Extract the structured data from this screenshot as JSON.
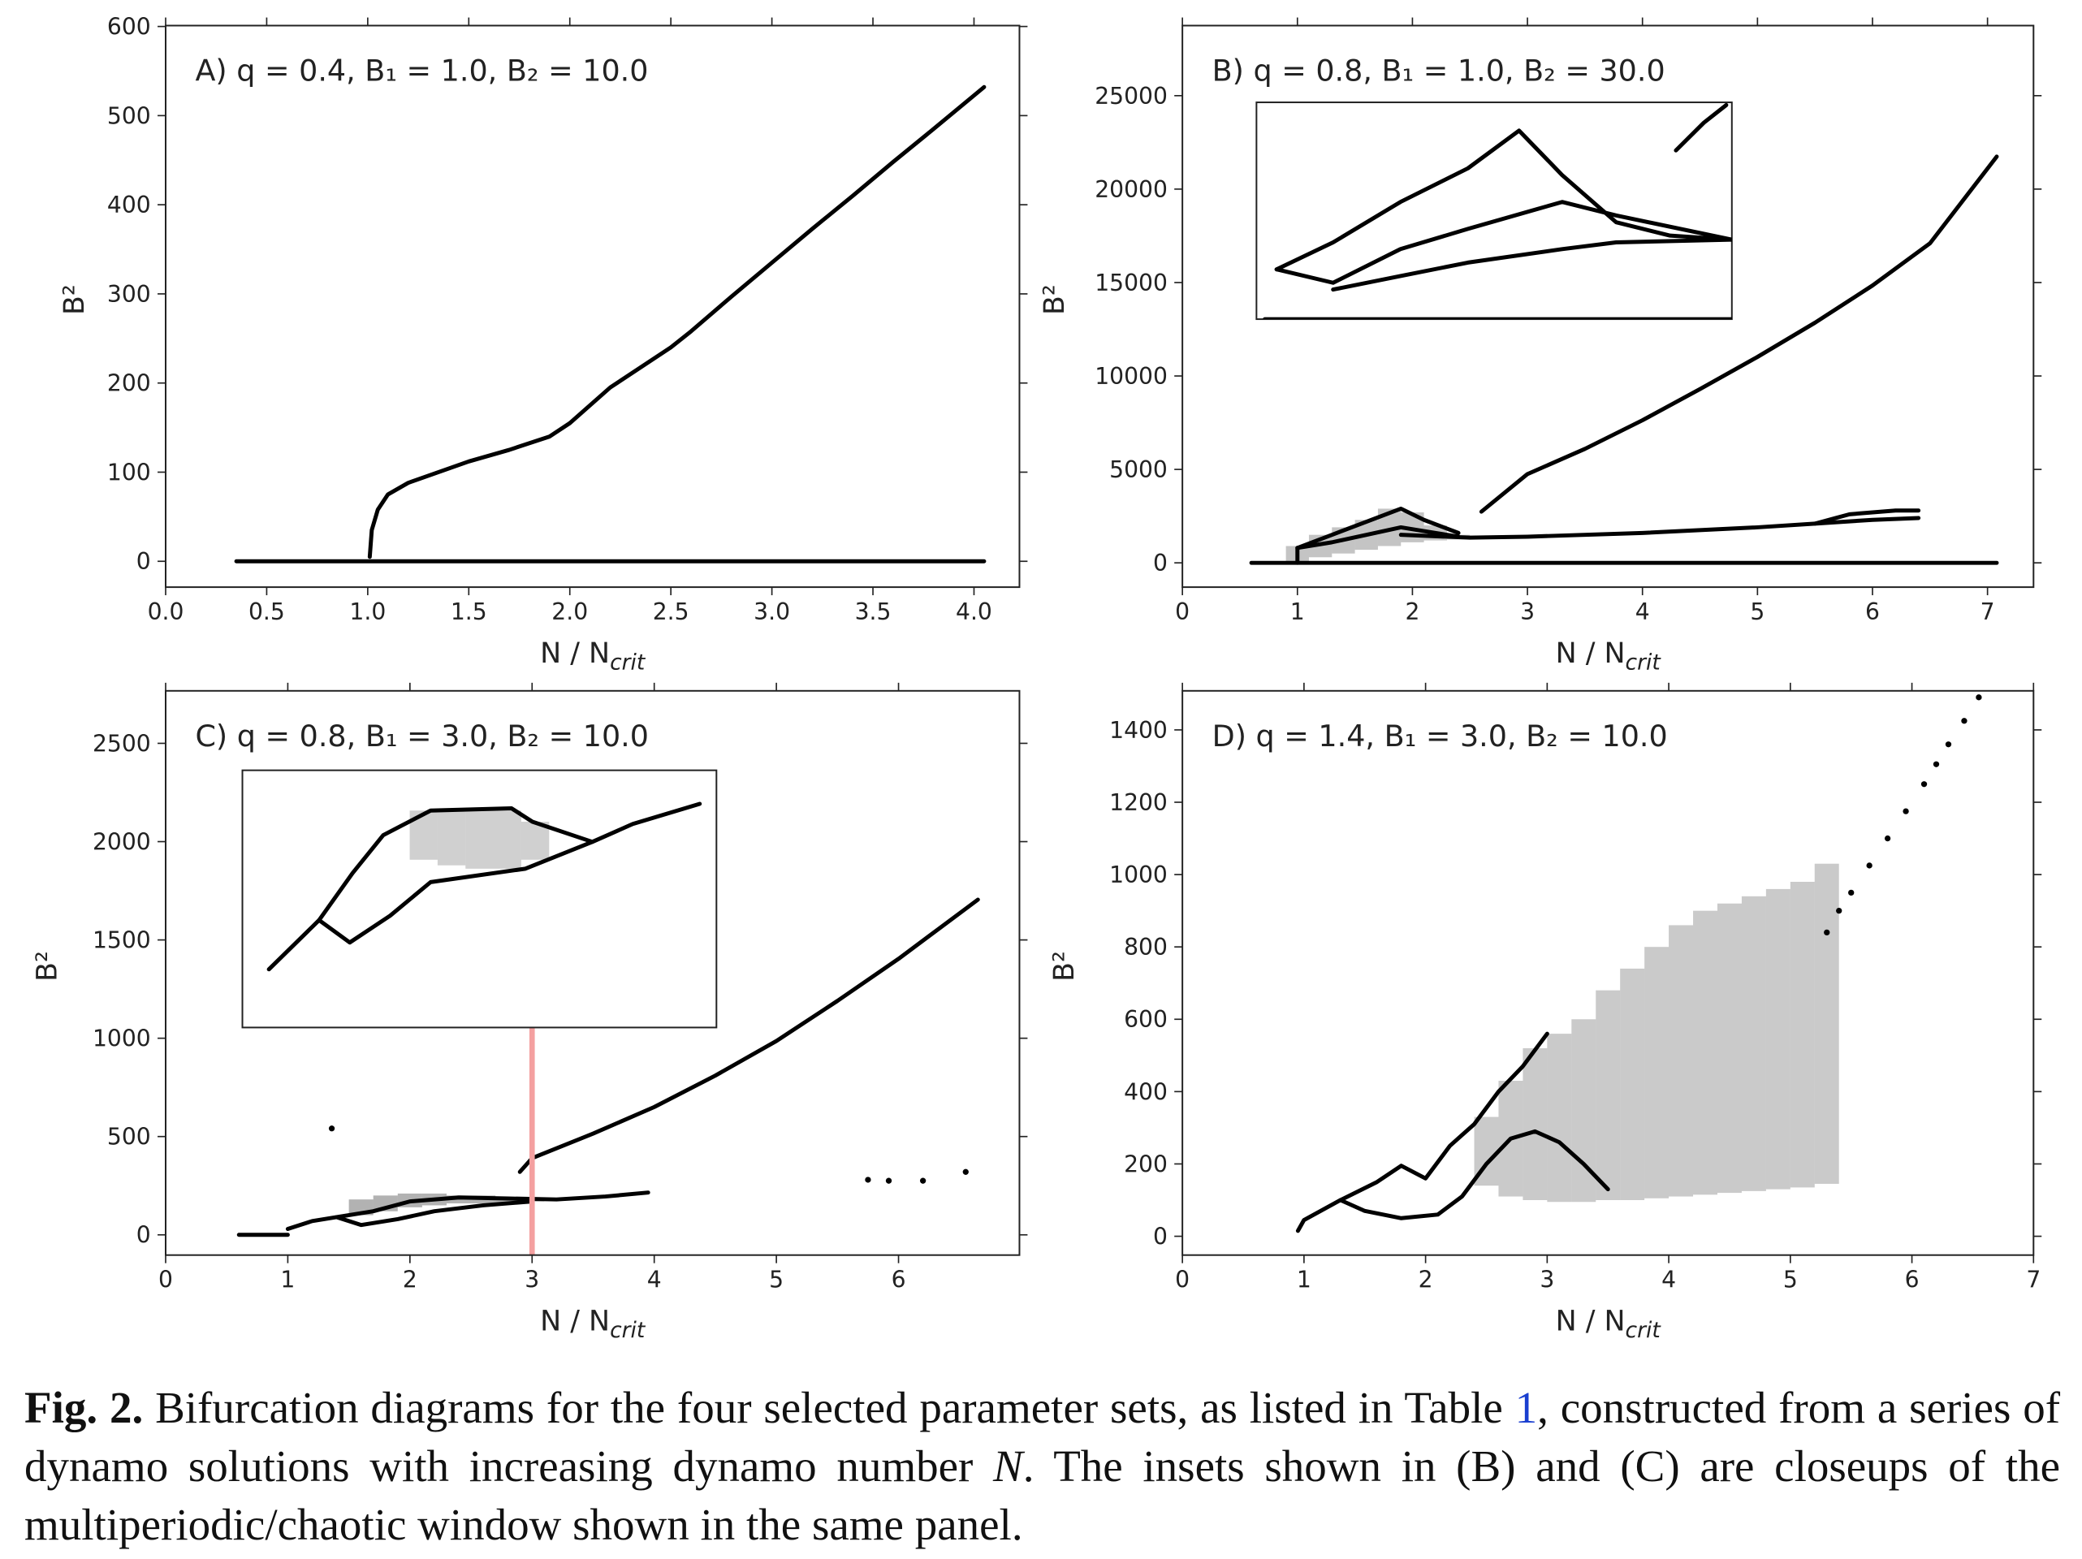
{
  "chart_data": [
    {
      "type": "scatter",
      "annotation": "A) q = 0.4, B₁ = 1.0, B₂ = 10.0",
      "xlabel": "N / N",
      "xlabel_sub": "crit",
      "ylabel": "B²",
      "xlim": [
        0,
        4.225
      ],
      "ylim": [
        -29,
        601
      ],
      "xticks": [
        {
          "value": 0,
          "label": "0.0"
        },
        0.5,
        {
          "value": 1,
          "label": "1.0"
        },
        1.5,
        {
          "value": 2,
          "label": "2.0"
        },
        2.5,
        {
          "value": 3,
          "label": "3.0"
        },
        3.5,
        {
          "value": 4,
          "label": "4.0"
        }
      ],
      "yticks": [
        0,
        100,
        200,
        300,
        400,
        500,
        600
      ],
      "series": [
        {
          "style": "line",
          "color": "#000000",
          "x": [
            0.35,
            4.05
          ],
          "values": [
            0,
            0
          ]
        },
        {
          "style": "line",
          "color": "#000000",
          "x": [
            1.01,
            1.02,
            1.05,
            1.1,
            1.2,
            1.5,
            1.7,
            1.9,
            2.0,
            2.2,
            2.5,
            2.6,
            2.8,
            3.0,
            3.2,
            3.4,
            3.6,
            3.8,
            4.05
          ],
          "values": [
            5,
            35,
            58,
            75,
            88,
            112,
            125,
            140,
            155,
            195,
            240,
            258,
            297,
            335,
            373,
            410,
            448,
            485,
            532
          ]
        }
      ]
    },
    {
      "type": "scatter",
      "annotation": "B) q = 0.8, B₁ = 1.0, B₂ = 30.0",
      "xlabel": "N / N",
      "xlabel_sub": "crit",
      "ylabel": "B²",
      "xlim": [
        0,
        7.4
      ],
      "ylim": [
        -1300,
        28750
      ],
      "xticks": [
        0,
        1,
        2,
        3,
        4,
        5,
        6,
        7
      ],
      "yticks": [
        0,
        5000,
        10000,
        15000,
        20000,
        25000
      ],
      "series": [
        {
          "style": "band",
          "color": "#555555",
          "x": [
            1.0,
            1.2,
            1.4,
            1.6,
            1.8,
            2.0,
            2.2,
            2.4
          ],
          "low": [
            0,
            300,
            500,
            700,
            900,
            1100,
            1200,
            1250
          ],
          "high": [
            900,
            1500,
            1900,
            2300,
            2900,
            2700,
            2000,
            1500
          ]
        },
        {
          "style": "line",
          "color": "#000000",
          "x": [
            0.6,
            7.08
          ],
          "values": [
            0,
            0
          ]
        },
        {
          "style": "line",
          "color": "#000000",
          "x": [
            1.0,
            1.0
          ],
          "values": [
            0,
            800
          ]
        },
        {
          "style": "line",
          "color": "#000000",
          "x": [
            1.0,
            1.3,
            1.6,
            1.9,
            2.1,
            2.4
          ],
          "values": [
            800,
            1500,
            2200,
            2900,
            2300,
            1600
          ]
        },
        {
          "style": "line",
          "color": "#000000",
          "x": [
            1.0,
            1.3,
            1.6,
            1.9,
            2.1,
            2.4
          ],
          "values": [
            800,
            1100,
            1500,
            1900,
            1700,
            1400
          ]
        },
        {
          "style": "line",
          "color": "#000000",
          "x": [
            1.9,
            2.5,
            3.0,
            4.0,
            5.0,
            5.5,
            6.0,
            6.4
          ],
          "values": [
            1500,
            1350,
            1400,
            1600,
            1900,
            2100,
            2300,
            2400
          ]
        },
        {
          "style": "line",
          "color": "#000000",
          "x": [
            5.5,
            5.8,
            6.2,
            6.4
          ],
          "values": [
            2100,
            2600,
            2800,
            2800
          ]
        },
        {
          "style": "line",
          "color": "#000000",
          "x": [
            2.6,
            3.0,
            3.5,
            4.0,
            4.5,
            5.0,
            5.5,
            6.0,
            6.5,
            7.08
          ],
          "values": [
            2740,
            4750,
            6100,
            7630,
            9300,
            11020,
            12850,
            14840,
            17100,
            21740
          ]
        }
      ],
      "inset": {
        "xlim": [
          0.9,
          2.6
        ],
        "ylim": [
          0,
          3200
        ],
        "series": [
          {
            "style": "line",
            "color": "#000000",
            "x": [
              0.93,
              2.6
            ],
            "values": [
              0,
              0
            ]
          },
          {
            "style": "line",
            "color": "#000000",
            "x": [
              0.972,
              1.174,
              1.415,
              1.656,
              1.839,
              1.993,
              2.186,
              2.379,
              2.6
            ],
            "values": [
              735,
              1133,
              1730,
              2226,
              2783,
              2127,
              1431,
              1233,
              1173
            ]
          },
          {
            "style": "line",
            "color": "#000000",
            "x": [
              0.972,
              1.174,
              1.415,
              1.656,
              1.993,
              2.186,
              2.6
            ],
            "values": [
              735,
              537,
              1034,
              1332,
              1730,
              1531,
              1173
            ]
          },
          {
            "style": "line",
            "color": "#000000",
            "x": [
              1.174,
              1.415,
              1.656,
              1.993,
              2.186,
              2.6
            ],
            "values": [
              437,
              636,
              835,
              1034,
              1133,
              1173
            ]
          },
          {
            "style": "line",
            "color": "#000000",
            "x": [
              2.4,
              2.5,
              2.58
            ],
            "values": [
              2490,
              2900,
              3160
            ]
          }
        ]
      }
    },
    {
      "type": "scatter",
      "annotation": "C) q = 0.8, B₁ = 3.0, B₂ = 10.0",
      "xlabel": "N / N",
      "xlabel_sub": "crit",
      "ylabel": "B²",
      "xlim": [
        0,
        6.99
      ],
      "ylim": [
        -103,
        2767
      ],
      "xticks": [
        0,
        1,
        2,
        3,
        4,
        5,
        6
      ],
      "yticks": [
        0,
        500,
        1000,
        1500,
        2000,
        2500
      ],
      "marker_x": 3,
      "marker_color": "#f4a0a0",
      "series": [
        {
          "style": "band",
          "color": "#222222",
          "x": [
            1.6,
            1.8,
            2.0,
            2.2,
            2.4,
            2.6,
            2.8,
            3.0
          ],
          "low": [
            100,
            120,
            140,
            150,
            160,
            160,
            160,
            170
          ],
          "high": [
            180,
            200,
            210,
            210,
            200,
            200,
            190,
            190
          ]
        },
        {
          "style": "line",
          "color": "#000000",
          "x": [
            0.6,
            1.0
          ],
          "values": [
            0,
            0
          ]
        },
        {
          "style": "line",
          "color": "#000000",
          "x": [
            1.0,
            1.2,
            1.4,
            1.7,
            2.0,
            2.4,
            2.8,
            3.2,
            3.6,
            3.95
          ],
          "values": [
            30,
            70,
            90,
            120,
            170,
            190,
            185,
            180,
            195,
            215
          ]
        },
        {
          "style": "line",
          "color": "#000000",
          "x": [
            1.4,
            1.6,
            1.9,
            2.2,
            2.6,
            3.0
          ],
          "values": [
            90,
            50,
            80,
            120,
            150,
            170
          ]
        },
        {
          "style": "line",
          "color": "#000000",
          "x": [
            2.9,
            3.0,
            3.5,
            4.0,
            4.5,
            5.0,
            5.5,
            6.0,
            6.65
          ],
          "values": [
            320,
            390,
            515,
            650,
            810,
            986,
            1190,
            1404,
            1705
          ]
        },
        {
          "style": "dots",
          "color": "#000000",
          "x": [
            1.36,
            5.75,
            5.92,
            6.2,
            6.55
          ],
          "values": [
            541,
            280,
            275,
            275,
            320
          ]
        }
      ],
      "inset": {
        "xlim": [
          0.6,
          4.0
        ],
        "ylim": [
          0,
          230
        ],
        "series": [
          {
            "style": "band",
            "color": "#777777",
            "x": [
              1.9,
              2.1,
              2.3,
              2.5,
              2.7
            ],
            "low": [
              150,
              145,
              142,
              142,
              150
            ],
            "high": [
              194,
              196,
              196,
              194,
              184
            ]
          },
          {
            "style": "line",
            "color": "#000000",
            "x": [
              0.79,
              1.15,
              1.39,
              1.61,
              1.95,
              2.53,
              2.68,
              3.11,
              3.4,
              3.88
            ],
            "values": [
              52,
              96,
              138,
              172,
              194,
              196,
              184,
              166,
              182,
              200
            ]
          },
          {
            "style": "line",
            "color": "#000000",
            "x": [
              1.15,
              1.37,
              1.66,
              1.95,
              2.63,
              3.11
            ],
            "values": [
              96,
              76,
              100,
              130,
              142,
              166
            ]
          }
        ]
      }
    },
    {
      "type": "scatter",
      "annotation": "D) q = 1.4, B₁ = 3.0, B₂ = 10.0",
      "xlabel": "N / N",
      "xlabel_sub": "crit",
      "ylabel": "B²",
      "xlim": [
        0,
        7
      ],
      "ylim": [
        -52,
        1508
      ],
      "xticks": [
        0,
        1,
        2,
        3,
        4,
        5,
        6,
        7
      ],
      "yticks": [
        0,
        200,
        400,
        600,
        800,
        1000,
        1200,
        1400
      ],
      "series": [
        {
          "style": "band",
          "color": "#666666",
          "x": [
            2.5,
            2.7,
            2.9,
            3.1,
            3.3,
            3.5,
            3.7,
            3.9,
            4.1,
            4.3,
            4.5,
            4.7,
            4.9,
            5.1,
            5.3
          ],
          "low": [
            140,
            110,
            100,
            95,
            95,
            100,
            100,
            105,
            110,
            115,
            120,
            125,
            130,
            135,
            145
          ],
          "high": [
            330,
            430,
            520,
            560,
            600,
            680,
            740,
            800,
            860,
            900,
            920,
            940,
            960,
            980,
            1030
          ]
        },
        {
          "style": "line",
          "color": "#000000",
          "x": [
            0.95,
            1.0,
            1.3,
            1.6,
            1.8,
            2.0,
            2.2,
            2.4,
            2.6,
            2.8,
            3.0
          ],
          "values": [
            15,
            45,
            100,
            150,
            195,
            160,
            250,
            310,
            400,
            470,
            560
          ]
        },
        {
          "style": "line",
          "color": "#000000",
          "x": [
            1.3,
            1.5,
            1.8,
            2.1,
            2.3,
            2.5,
            2.7,
            2.9,
            3.1,
            3.3,
            3.5
          ],
          "values": [
            100,
            70,
            50,
            60,
            110,
            200,
            270,
            290,
            260,
            200,
            130
          ]
        },
        {
          "style": "dots",
          "color": "#000000",
          "x": [
            5.3,
            5.4,
            5.5,
            5.65,
            5.8,
            5.95,
            6.1,
            6.2,
            6.3,
            6.43,
            6.55
          ],
          "values": [
            840,
            900,
            950,
            1025,
            1100,
            1175,
            1250,
            1305,
            1360,
            1425,
            1490
          ]
        }
      ]
    }
  ],
  "caption": {
    "label": "Fig. 2.",
    "text1": "Bifurcation diagrams for the four selected parameter sets, as listed in Table",
    "ref": "1",
    "text2": ", constructed from a series of dynamo solutions with increasing dynamo number",
    "italic": "N",
    "text3": ". The insets shown in (B) and (C) are closeups of the multiperiodic/chaotic window shown in the same panel."
  }
}
